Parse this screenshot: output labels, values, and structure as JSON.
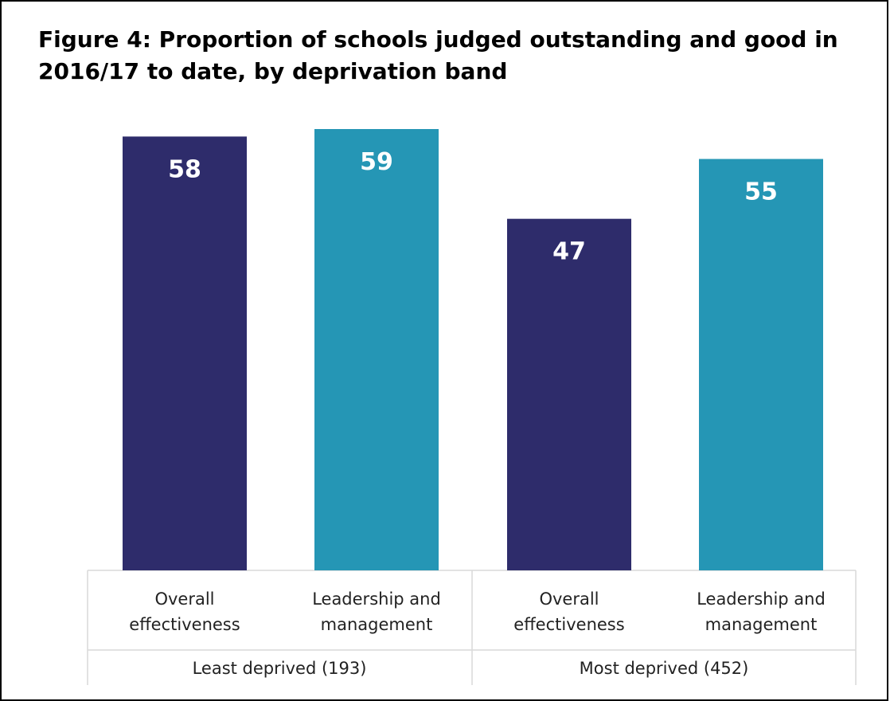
{
  "title": "Figure 4: Proportion of schools judged outstanding and good in 2016/17 to date, by deprivation band",
  "colors": {
    "overall": "#2e2c6b",
    "leadership": "#2596b5",
    "axis": "#d9d9d9",
    "label_text": "#ffffff"
  },
  "chart_data": {
    "type": "bar",
    "title": "Figure 4: Proportion of schools judged outstanding and good in 2016/17 to date, by deprivation band",
    "xlabel": "",
    "ylabel": "",
    "ylim": [
      0,
      60
    ],
    "grid": false,
    "legend": "none",
    "groups": [
      {
        "label": "Least deprived (193)",
        "bars": [
          {
            "category": "Overall effectiveness",
            "lines": [
              "Overall",
              "effectiveness"
            ],
            "value": 58,
            "color": "#2e2c6b"
          },
          {
            "category": "Leadership and management",
            "lines": [
              "Leadership and",
              "management"
            ],
            "value": 59,
            "color": "#2596b5"
          }
        ]
      },
      {
        "label": "Most deprived (452)",
        "bars": [
          {
            "category": "Overall effectiveness",
            "lines": [
              "Overall",
              "effectiveness"
            ],
            "value": 47,
            "color": "#2e2c6b"
          },
          {
            "category": "Leadership and management",
            "lines": [
              "Leadership and",
              "management"
            ],
            "value": 55,
            "color": "#2596b5"
          }
        ]
      }
    ]
  }
}
